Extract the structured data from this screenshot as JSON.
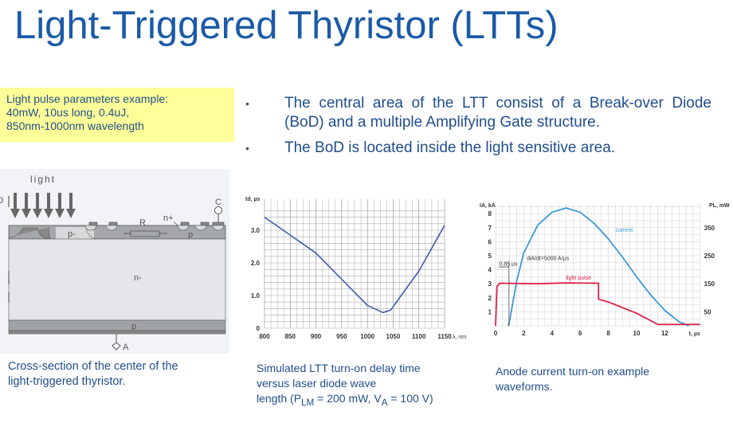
{
  "title": "Light-Triggered Thyristor (LTTs)",
  "note": [
    "Light pulse parameters example:",
    "40mW, 10us long, 0.4uJ,",
    "850nm-1000nm wavelength"
  ],
  "bullets": [
    "The central area of the LTT consist of a Break-over Diode (BoD) and a multiple Amplifying Gate structure.",
    "The BoD is located inside the light sensitive area."
  ],
  "diagram": {
    "light": "light",
    "labels": {
      "p_minus": "p-",
      "r": "R",
      "n_plus": "n+",
      "c": "C",
      "p_top": "p",
      "n_minus": "n-",
      "p_bottom": "p",
      "a": "A",
      "zero": "0"
    },
    "caption": [
      "Cross-section of the center of the",
      "light-triggered thyristor."
    ]
  },
  "captions": {
    "middle": {
      "line1": "Simulated LTT turn-on delay time",
      "line2": "versus laser diode wave",
      "line3_pre": "length (P",
      "sub1": "LM",
      "mid": " = 200 mW, V",
      "sub2": "A",
      "post": " = 100 V)"
    },
    "right": [
      "Anode current turn-on example",
      "waveforms."
    ]
  },
  "chart_data": [
    {
      "type": "line",
      "xlabel": "λ, nm",
      "ylabel": "td, µs",
      "xlim": [
        800,
        1150
      ],
      "ylim": [
        0,
        3.5
      ],
      "xticks": [
        "800",
        "850",
        "900",
        "950",
        "1000",
        "1050",
        "1100",
        "1150"
      ],
      "yticks": [
        "0",
        "1.0",
        "2.0",
        "3.0"
      ],
      "grid": true,
      "color": "#3b5ba8",
      "x": [
        800,
        850,
        900,
        950,
        1000,
        1030,
        1045,
        1100,
        1150
      ],
      "y": [
        3.4,
        2.85,
        2.3,
        1.5,
        0.7,
        0.48,
        0.55,
        1.75,
        3.15
      ]
    },
    {
      "type": "line",
      "xlabel": "t, µs",
      "ylabel": "IA, kA",
      "ylabel_right": "PL, mW",
      "xlim": [
        0,
        14.5
      ],
      "ylim": [
        0,
        8.7
      ],
      "ylim_right": [
        0,
        435
      ],
      "xticks": [
        "0",
        "2",
        "4",
        "6",
        "8",
        "10",
        "12"
      ],
      "yticks": [
        "1",
        "2",
        "3",
        "4",
        "5",
        "6",
        "7",
        "8"
      ],
      "yticks_right": [
        "50",
        "150",
        "250",
        "350"
      ],
      "grid": true,
      "annotations": {
        "delay": "0.85 µs",
        "slope": "diA/dt=5000 A/µs"
      },
      "series": [
        {
          "name": "current",
          "color": "#3a9ad9",
          "axis": "left",
          "x": [
            0.9,
            1.0,
            1.5,
            2,
            3,
            4,
            5,
            6,
            7,
            8,
            9,
            10,
            11,
            12,
            13,
            13.7
          ],
          "y": [
            0,
            0.4,
            3.2,
            5.2,
            7.2,
            8.1,
            8.4,
            8.1,
            7.3,
            6.2,
            4.9,
            3.5,
            2.2,
            1.1,
            0.3,
            0
          ]
        },
        {
          "name": "light pulse",
          "color": "#e0204a",
          "axis": "right",
          "x": [
            0,
            0.1,
            0.3,
            3,
            5,
            7.3,
            7.3,
            8,
            10,
            11.5,
            14.5
          ],
          "y": [
            0,
            140,
            152,
            150,
            153,
            152,
            95,
            85,
            45,
            5,
            5
          ]
        }
      ]
    }
  ]
}
